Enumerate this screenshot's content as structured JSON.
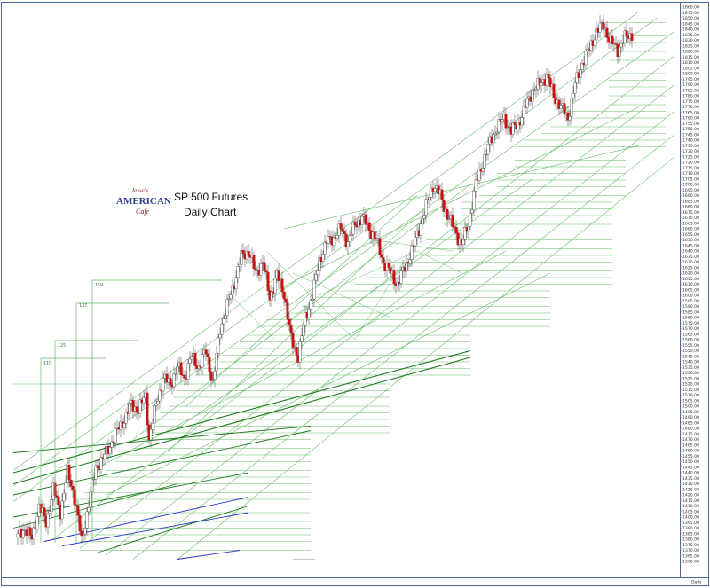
{
  "chart_data": {
    "type": "candlestick",
    "title": "SP 500 Futures",
    "subtitle": "Daily Chart",
    "logo": {
      "line1": "Jesse's",
      "line2": "AMERICAN",
      "line3": "Cafe"
    },
    "y_axis": {
      "min": 1360,
      "max": 1860,
      "tick_step": 5,
      "label_decimals": 2,
      "side": "right"
    },
    "x_axis_label": "Daily",
    "level_labels": [
      "110",
      "125",
      "137",
      "159"
    ],
    "colors": {
      "up": "#ffffff",
      "down": "#cc1111",
      "wick": "#444444",
      "fan": "#66bb66",
      "fan_dark": "#1e7a1e",
      "blue": "#2233cc",
      "frame": "#4a6aa0"
    },
    "close_path": [
      [
        0,
        1382
      ],
      [
        4,
        1390
      ],
      [
        8,
        1380
      ],
      [
        12,
        1410
      ],
      [
        16,
        1395
      ],
      [
        20,
        1425
      ],
      [
        24,
        1405
      ],
      [
        28,
        1440
      ],
      [
        32,
        1418
      ],
      [
        36,
        1378
      ],
      [
        40,
        1412
      ],
      [
        44,
        1445
      ],
      [
        48,
        1452
      ],
      [
        52,
        1465
      ],
      [
        56,
        1478
      ],
      [
        60,
        1488
      ],
      [
        64,
        1502
      ],
      [
        68,
        1496
      ],
      [
        72,
        1510
      ],
      [
        74,
        1470
      ],
      [
        78,
        1502
      ],
      [
        82,
        1525
      ],
      [
        86,
        1520
      ],
      [
        90,
        1535
      ],
      [
        94,
        1526
      ],
      [
        98,
        1545
      ],
      [
        102,
        1535
      ],
      [
        106,
        1550
      ],
      [
        110,
        1520
      ],
      [
        114,
        1570
      ],
      [
        118,
        1590
      ],
      [
        122,
        1612
      ],
      [
        126,
        1635
      ],
      [
        130,
        1640
      ],
      [
        134,
        1620
      ],
      [
        138,
        1630
      ],
      [
        142,
        1598
      ],
      [
        146,
        1618
      ],
      [
        150,
        1602
      ],
      [
        154,
        1560
      ],
      [
        158,
        1545
      ],
      [
        162,
        1580
      ],
      [
        166,
        1600
      ],
      [
        170,
        1632
      ],
      [
        174,
        1648
      ],
      [
        178,
        1652
      ],
      [
        182,
        1660
      ],
      [
        186,
        1648
      ],
      [
        190,
        1664
      ],
      [
        194,
        1670
      ],
      [
        198,
        1660
      ],
      [
        202,
        1650
      ],
      [
        206,
        1630
      ],
      [
        210,
        1620
      ],
      [
        214,
        1610
      ],
      [
        218,
        1625
      ],
      [
        222,
        1640
      ],
      [
        226,
        1660
      ],
      [
        230,
        1680
      ],
      [
        234,
        1700
      ],
      [
        238,
        1690
      ],
      [
        242,
        1672
      ],
      [
        246,
        1660
      ],
      [
        250,
        1645
      ],
      [
        254,
        1665
      ],
      [
        258,
        1700
      ],
      [
        262,
        1720
      ],
      [
        266,
        1738
      ],
      [
        270,
        1752
      ],
      [
        274,
        1760
      ],
      [
        278,
        1748
      ],
      [
        282,
        1755
      ],
      [
        286,
        1770
      ],
      [
        290,
        1785
      ],
      [
        294,
        1790
      ],
      [
        298,
        1798
      ],
      [
        302,
        1780
      ],
      [
        306,
        1770
      ],
      [
        310,
        1760
      ],
      [
        314,
        1790
      ],
      [
        318,
        1810
      ],
      [
        322,
        1822
      ],
      [
        326,
        1838
      ],
      [
        330,
        1844
      ],
      [
        334,
        1828
      ],
      [
        338,
        1822
      ],
      [
        342,
        1832
      ],
      [
        346,
        1836
      ]
    ]
  },
  "footer": {
    "corner_label": "Daily"
  }
}
